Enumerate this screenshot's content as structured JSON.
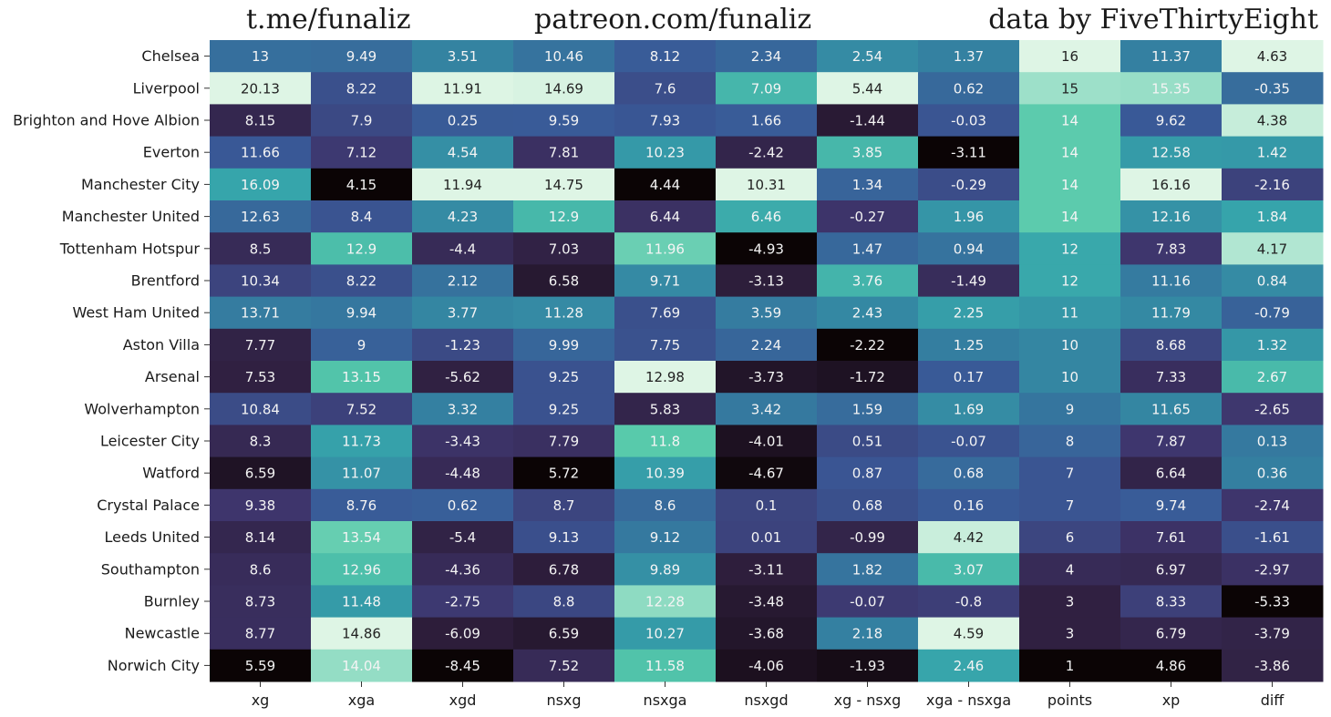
{
  "header": {
    "left": "t.me/funaliz",
    "center": "patreon.com/funaliz",
    "right": "data by FiveThirtyEight"
  },
  "chart_data": {
    "type": "heatmap",
    "title": "",
    "colormap": "mako-like (dark = low, light teal = high), each column scaled independently",
    "columns": [
      "xg",
      "xga",
      "xgd",
      "nsxg",
      "nsxga",
      "nsxgd",
      "xg - nsxg",
      "xga - nsxga",
      "points",
      "xp",
      "diff"
    ],
    "rows": [
      "Chelsea",
      "Liverpool",
      "Brighton and Hove Albion",
      "Everton",
      "Manchester City",
      "Manchester United",
      "Tottenham Hotspur",
      "Brentford",
      "West Ham United",
      "Aston Villa",
      "Arsenal",
      "Wolverhampton",
      "Leicester City",
      "Watford",
      "Crystal Palace",
      "Leeds United",
      "Southampton",
      "Burnley",
      "Newcastle",
      "Norwich City"
    ],
    "values": [
      [
        "13",
        "9.49",
        "3.51",
        "10.46",
        "8.12",
        "2.34",
        "2.54",
        "1.37",
        "16",
        "11.37",
        "4.63"
      ],
      [
        "20.13",
        "8.22",
        "11.91",
        "14.69",
        "7.6",
        "7.09",
        "5.44",
        "0.62",
        "15",
        "15.35",
        "-0.35"
      ],
      [
        "8.15",
        "7.9",
        "0.25",
        "9.59",
        "7.93",
        "1.66",
        "-1.44",
        "-0.03",
        "14",
        "9.62",
        "4.38"
      ],
      [
        "11.66",
        "7.12",
        "4.54",
        "7.81",
        "10.23",
        "-2.42",
        "3.85",
        "-3.11",
        "14",
        "12.58",
        "1.42"
      ],
      [
        "16.09",
        "4.15",
        "11.94",
        "14.75",
        "4.44",
        "10.31",
        "1.34",
        "-0.29",
        "14",
        "16.16",
        "-2.16"
      ],
      [
        "12.63",
        "8.4",
        "4.23",
        "12.9",
        "6.44",
        "6.46",
        "-0.27",
        "1.96",
        "14",
        "12.16",
        "1.84"
      ],
      [
        "8.5",
        "12.9",
        "-4.4",
        "7.03",
        "11.96",
        "-4.93",
        "1.47",
        "0.94",
        "12",
        "7.83",
        "4.17"
      ],
      [
        "10.34",
        "8.22",
        "2.12",
        "6.58",
        "9.71",
        "-3.13",
        "3.76",
        "-1.49",
        "12",
        "11.16",
        "0.84"
      ],
      [
        "13.71",
        "9.94",
        "3.77",
        "11.28",
        "7.69",
        "3.59",
        "2.43",
        "2.25",
        "11",
        "11.79",
        "-0.79"
      ],
      [
        "7.77",
        "9",
        "-1.23",
        "9.99",
        "7.75",
        "2.24",
        "-2.22",
        "1.25",
        "10",
        "8.68",
        "1.32"
      ],
      [
        "7.53",
        "13.15",
        "-5.62",
        "9.25",
        "12.98",
        "-3.73",
        "-1.72",
        "0.17",
        "10",
        "7.33",
        "2.67"
      ],
      [
        "10.84",
        "7.52",
        "3.32",
        "9.25",
        "5.83",
        "3.42",
        "1.59",
        "1.69",
        "9",
        "11.65",
        "-2.65"
      ],
      [
        "8.3",
        "11.73",
        "-3.43",
        "7.79",
        "11.8",
        "-4.01",
        "0.51",
        "-0.07",
        "8",
        "7.87",
        "0.13"
      ],
      [
        "6.59",
        "11.07",
        "-4.48",
        "5.72",
        "10.39",
        "-4.67",
        "0.87",
        "0.68",
        "7",
        "6.64",
        "0.36"
      ],
      [
        "9.38",
        "8.76",
        "0.62",
        "8.7",
        "8.6",
        "0.1",
        "0.68",
        "0.16",
        "7",
        "9.74",
        "-2.74"
      ],
      [
        "8.14",
        "13.54",
        "-5.4",
        "9.13",
        "9.12",
        "0.01",
        "-0.99",
        "4.42",
        "6",
        "7.61",
        "-1.61"
      ],
      [
        "8.6",
        "12.96",
        "-4.36",
        "6.78",
        "9.89",
        "-3.11",
        "1.82",
        "3.07",
        "4",
        "6.97",
        "-2.97"
      ],
      [
        "8.73",
        "11.48",
        "-2.75",
        "8.8",
        "12.28",
        "-3.48",
        "-0.07",
        "-0.8",
        "3",
        "8.33",
        "-5.33"
      ],
      [
        "8.77",
        "14.86",
        "-6.09",
        "6.59",
        "10.27",
        "-3.68",
        "2.18",
        "4.59",
        "3",
        "6.79",
        "-3.79"
      ],
      [
        "5.59",
        "14.04",
        "-8.45",
        "7.52",
        "11.58",
        "-4.06",
        "-1.93",
        "2.46",
        "1",
        "4.86",
        "-3.86"
      ]
    ],
    "xlabel": "",
    "ylabel": "",
    "grid": false,
    "legend": "none"
  }
}
